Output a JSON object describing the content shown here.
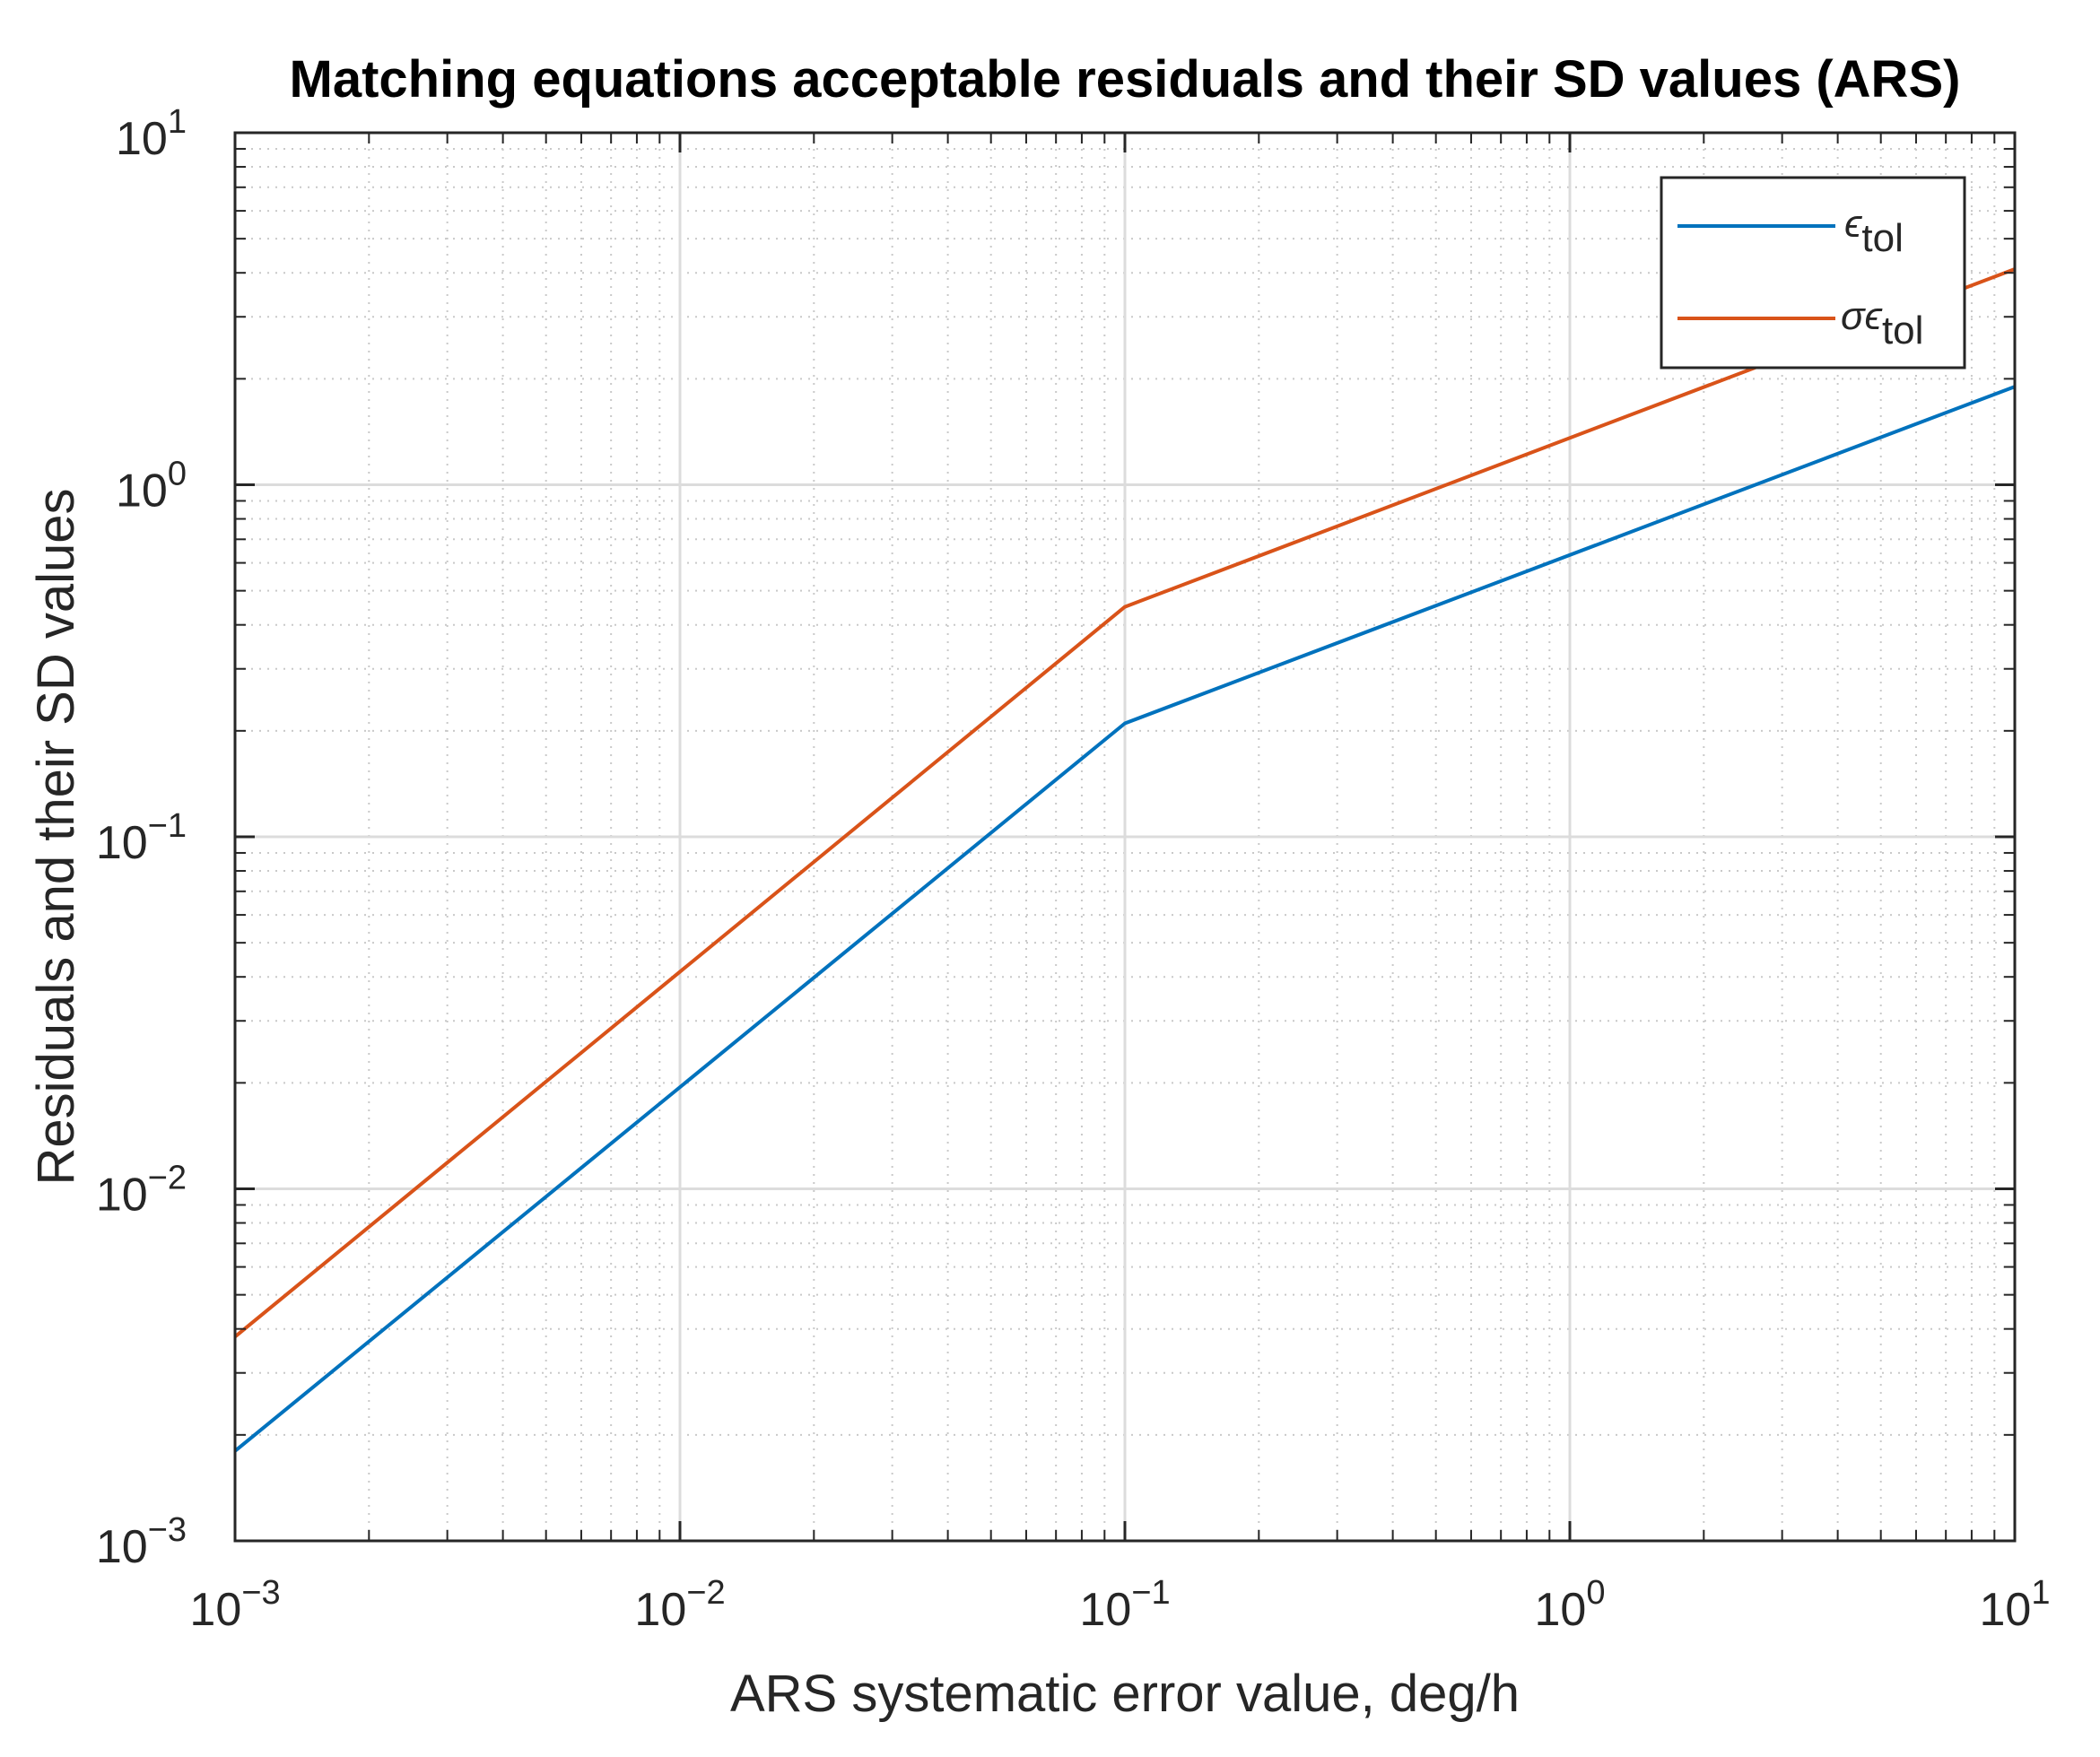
{
  "chart_data": {
    "type": "line",
    "title": "Matching equations acceptable residuals and their SD values (ARS)",
    "xlabel": "ARS systematic error value, deg/h",
    "ylabel": "Residuals and their SD values",
    "xscale": "log",
    "yscale": "log",
    "xlim": [
      0.001,
      10
    ],
    "ylim": [
      0.001,
      10
    ],
    "grid": true,
    "minor_grid": true,
    "x_ticks": [
      {
        "base": "10",
        "exp": "−3",
        "value": 0.001
      },
      {
        "base": "10",
        "exp": "−2",
        "value": 0.01
      },
      {
        "base": "10",
        "exp": "−1",
        "value": 0.1
      },
      {
        "base": "10",
        "exp": "0",
        "value": 1
      },
      {
        "base": "10",
        "exp": "1",
        "value": 10
      }
    ],
    "y_ticks": [
      {
        "base": "10",
        "exp": "−3",
        "value": 0.001
      },
      {
        "base": "10",
        "exp": "−2",
        "value": 0.01
      },
      {
        "base": "10",
        "exp": "−1",
        "value": 0.1
      },
      {
        "base": "10",
        "exp": "0",
        "value": 1
      },
      {
        "base": "10",
        "exp": "1",
        "value": 10
      }
    ],
    "legend": {
      "position": "top-right",
      "entries": [
        {
          "symbol": "ϵ",
          "subscript": "tol",
          "series": 0
        },
        {
          "symbol": "σϵ",
          "subscript": "tol",
          "series": 1
        }
      ]
    },
    "series": [
      {
        "name": "ϵ_tol",
        "color": "#0072BD",
        "x": [
          0.001,
          0.1,
          10
        ],
        "y": [
          0.0018,
          0.21,
          1.9
        ]
      },
      {
        "name": "σϵ_tol",
        "color": "#D95319",
        "x": [
          0.001,
          0.1,
          10
        ],
        "y": [
          0.0038,
          0.45,
          4.1
        ]
      }
    ]
  }
}
